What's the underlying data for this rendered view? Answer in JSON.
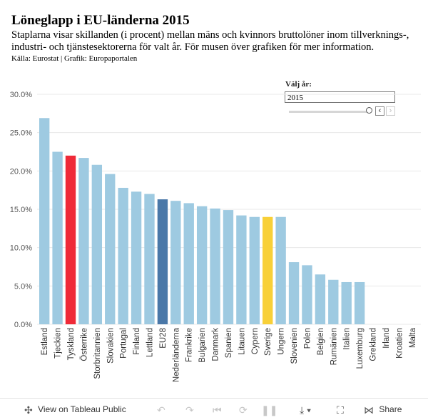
{
  "header": {
    "title": "Löneglapp  i  EU-länderna  2015",
    "subtitle": "Staplarna visar skillanden (i procent) mellan mäns och kvinnors bruttolöner inom tillverknings-, industri- och tjänstesektorerna för valt år. För musen över grafiken för mer information.",
    "source": "Källa: Eurostat | Grafik: Europaportalen"
  },
  "year_control": {
    "label": "Välj  år:",
    "value": "2015",
    "slider_fraction": 1.0
  },
  "colors": {
    "default": "#9ecae1",
    "germany": "#ef2a38",
    "eu28": "#4a78a8",
    "sweden": "#f8d038",
    "grid": "#e8e8e8",
    "axis_text": "#555555"
  },
  "chart_data": {
    "type": "bar",
    "title": "",
    "xlabel": "",
    "ylabel": "",
    "ylim": [
      0,
      30
    ],
    "yticks": [
      0,
      5,
      10,
      15,
      20,
      25,
      30
    ],
    "ytick_labels": [
      "0.0%",
      "5.0%",
      "10.0%",
      "15.0%",
      "20.0%",
      "25.0%",
      "30.0%"
    ],
    "grid": true,
    "categories": [
      "Estland",
      "Tjeckien",
      "Tyskland",
      "Österrike",
      "Storbritannien",
      "Slovakien",
      "Portugal",
      "Finland",
      "Lettland",
      "EU28",
      "Nederländerna",
      "Frankrike",
      "Bulgarien",
      "Danmark",
      "Spanien",
      "Litauen",
      "Cypern",
      "Sverige",
      "Ungern",
      "Slovenien",
      "Polen",
      "Belgien",
      "Rumänien",
      "Italien",
      "Luxemburg",
      "Grekland",
      "Irland",
      "Kroatien",
      "Malta"
    ],
    "values": [
      26.9,
      22.5,
      22.0,
      21.7,
      20.8,
      19.6,
      17.8,
      17.3,
      17.0,
      16.3,
      16.1,
      15.8,
      15.4,
      15.1,
      14.9,
      14.2,
      14.0,
      14.0,
      14.0,
      8.1,
      7.7,
      6.5,
      5.8,
      5.5,
      5.5,
      0,
      0,
      0,
      0
    ],
    "highlights": {
      "Tyskland": "germany",
      "EU28": "eu28",
      "Sverige": "sweden"
    }
  },
  "toolbar": {
    "view_label": "View on Tableau Public",
    "share_label": "Share",
    "icons": [
      "tableau-logo-icon",
      "undo-icon",
      "redo-icon",
      "revert-icon",
      "pause-icon",
      "download-icon",
      "fullscreen-icon",
      "share-icon"
    ]
  }
}
